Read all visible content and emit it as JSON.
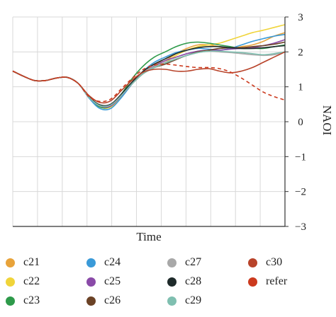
{
  "chart_data": {
    "type": "line",
    "xlabel": "Time",
    "ylabel": "NAOI",
    "ylim": [
      -3,
      3
    ],
    "yticks": [
      "3",
      "2",
      "1",
      "0",
      "−1",
      "−2",
      "−3"
    ],
    "grid": true,
    "legend_position": "bottom",
    "x": [
      0,
      0.04,
      0.08,
      0.12,
      0.16,
      0.2,
      0.24,
      0.28,
      0.32,
      0.36,
      0.4,
      0.44,
      0.48,
      0.52,
      0.56,
      0.6,
      0.64,
      0.68,
      0.72,
      0.76,
      0.8,
      0.84,
      0.88,
      0.92,
      0.96,
      1.0
    ],
    "series": [
      {
        "name": "c21",
        "color": "#e8a33a",
        "values": [
          1.45,
          1.3,
          1.18,
          1.18,
          1.25,
          1.27,
          1.1,
          0.7,
          0.45,
          0.45,
          0.75,
          1.15,
          1.45,
          1.65,
          1.75,
          1.95,
          2.1,
          2.2,
          2.2,
          2.15,
          2.1,
          2.15,
          2.2,
          2.3,
          2.45,
          2.55
        ]
      },
      {
        "name": "c22",
        "color": "#f0d43a",
        "values": [
          1.45,
          1.3,
          1.18,
          1.18,
          1.25,
          1.27,
          1.1,
          0.7,
          0.42,
          0.42,
          0.72,
          1.1,
          1.4,
          1.6,
          1.7,
          1.9,
          2.05,
          2.15,
          2.2,
          2.25,
          2.35,
          2.45,
          2.55,
          2.62,
          2.7,
          2.78
        ]
      },
      {
        "name": "c23",
        "color": "#2e9a4a",
        "values": [
          1.45,
          1.3,
          1.18,
          1.18,
          1.25,
          1.27,
          1.1,
          0.7,
          0.42,
          0.45,
          0.8,
          1.25,
          1.6,
          1.85,
          2.0,
          2.15,
          2.25,
          2.28,
          2.25,
          2.2,
          2.15,
          2.1,
          2.1,
          2.1,
          2.15,
          2.2
        ]
      },
      {
        "name": "c24",
        "color": "#3a9ad8",
        "values": [
          1.45,
          1.3,
          1.18,
          1.18,
          1.25,
          1.27,
          1.1,
          0.68,
          0.38,
          0.38,
          0.7,
          1.1,
          1.45,
          1.7,
          1.85,
          1.98,
          2.05,
          2.1,
          2.08,
          2.05,
          2.1,
          2.2,
          2.3,
          2.38,
          2.45,
          2.5
        ]
      },
      {
        "name": "c25",
        "color": "#8a4aa8",
        "values": [
          1.45,
          1.3,
          1.18,
          1.18,
          1.25,
          1.27,
          1.1,
          0.7,
          0.45,
          0.45,
          0.75,
          1.1,
          1.4,
          1.6,
          1.75,
          1.85,
          1.95,
          2.02,
          2.05,
          2.05,
          2.08,
          2.1,
          2.12,
          2.18,
          2.25,
          2.35
        ]
      },
      {
        "name": "c26",
        "color": "#6b4226",
        "values": [
          1.45,
          1.3,
          1.18,
          1.18,
          1.25,
          1.27,
          1.1,
          0.7,
          0.48,
          0.5,
          0.78,
          1.1,
          1.38,
          1.55,
          1.65,
          1.78,
          1.9,
          2.0,
          2.05,
          2.1,
          2.12,
          2.12,
          2.15,
          2.18,
          2.22,
          2.28
        ]
      },
      {
        "name": "c27",
        "color": "#a8a8a8",
        "values": [
          1.45,
          1.3,
          1.18,
          1.18,
          1.25,
          1.27,
          1.1,
          0.7,
          0.45,
          0.48,
          0.78,
          1.12,
          1.4,
          1.58,
          1.7,
          1.8,
          1.9,
          1.98,
          2.02,
          2.0,
          1.98,
          1.95,
          1.92,
          1.9,
          1.92,
          2.0
        ]
      },
      {
        "name": "c28",
        "color": "#1e2a2a",
        "values": [
          1.45,
          1.3,
          1.18,
          1.18,
          1.25,
          1.27,
          1.1,
          0.72,
          0.48,
          0.5,
          0.8,
          1.15,
          1.45,
          1.65,
          1.8,
          1.95,
          2.05,
          2.12,
          2.15,
          2.15,
          2.12,
          2.1,
          2.1,
          2.12,
          2.15,
          2.18
        ]
      },
      {
        "name": "c29",
        "color": "#7fbfb0",
        "values": [
          1.45,
          1.3,
          1.18,
          1.18,
          1.25,
          1.27,
          1.1,
          0.7,
          0.46,
          0.48,
          0.76,
          1.1,
          1.38,
          1.55,
          1.68,
          1.8,
          1.9,
          1.98,
          2.02,
          2.02,
          2.0,
          1.98,
          1.95,
          1.92,
          1.95,
          2.0
        ]
      },
      {
        "name": "c30",
        "color": "#b8432a",
        "values": [
          1.45,
          1.3,
          1.18,
          1.18,
          1.25,
          1.27,
          1.1,
          0.75,
          0.55,
          0.6,
          0.9,
          1.2,
          1.42,
          1.5,
          1.5,
          1.45,
          1.45,
          1.5,
          1.52,
          1.45,
          1.4,
          1.45,
          1.55,
          1.7,
          1.85,
          2.0
        ]
      },
      {
        "name": "refer",
        "color": "#cc3a1e",
        "dashed": true,
        "values": [
          1.45,
          1.3,
          1.18,
          1.18,
          1.25,
          1.27,
          1.1,
          0.72,
          0.58,
          0.65,
          0.95,
          1.25,
          1.5,
          1.62,
          1.65,
          1.62,
          1.58,
          1.55,
          1.55,
          1.52,
          1.42,
          1.25,
          1.05,
          0.85,
          0.72,
          0.62
        ]
      }
    ]
  }
}
